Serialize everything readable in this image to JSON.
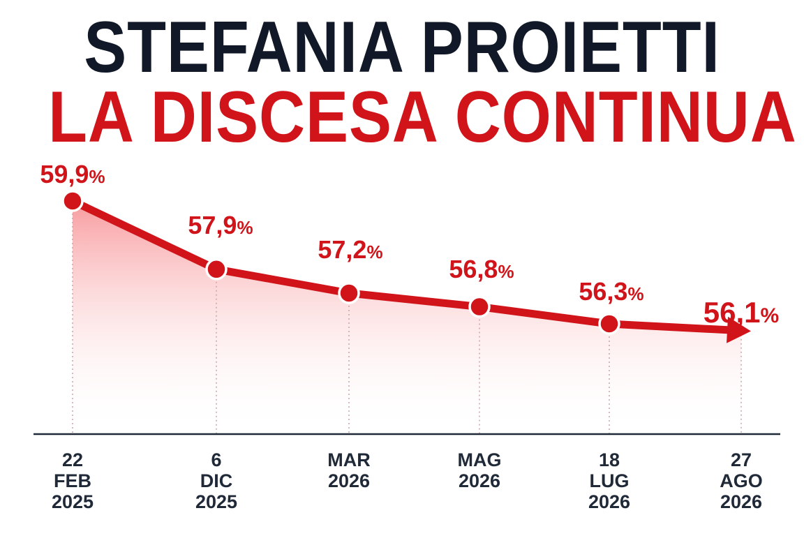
{
  "chart_data": {
    "type": "line",
    "title": "STEFANIA PROIETTI",
    "subtitle": "LA DISCESA CONTINUA",
    "categories": [
      [
        "22",
        "FEB",
        "2025"
      ],
      [
        "6",
        "DIC",
        "2025"
      ],
      [
        "MAR",
        "2026"
      ],
      [
        "MAG",
        "2026"
      ],
      [
        "18",
        "LUG",
        "2026"
      ],
      [
        "27",
        "AGO",
        "2026"
      ]
    ],
    "series": [
      {
        "values": [
          59.9,
          57.9,
          57.2,
          56.8,
          56.3,
          56.1
        ],
        "data_labels": [
          [
            "59,9",
            "%"
          ],
          [
            "57,9",
            "%"
          ],
          [
            "57,2",
            "%"
          ],
          [
            "56,8",
            "%"
          ],
          [
            "56,3",
            "%"
          ],
          [
            "56,1",
            "%"
          ]
        ]
      }
    ],
    "xlabel": "",
    "ylabel": "",
    "grid": false,
    "colors": {
      "line": "#d0141a",
      "title": "#111827",
      "subtitle": "#d0141a"
    }
  }
}
